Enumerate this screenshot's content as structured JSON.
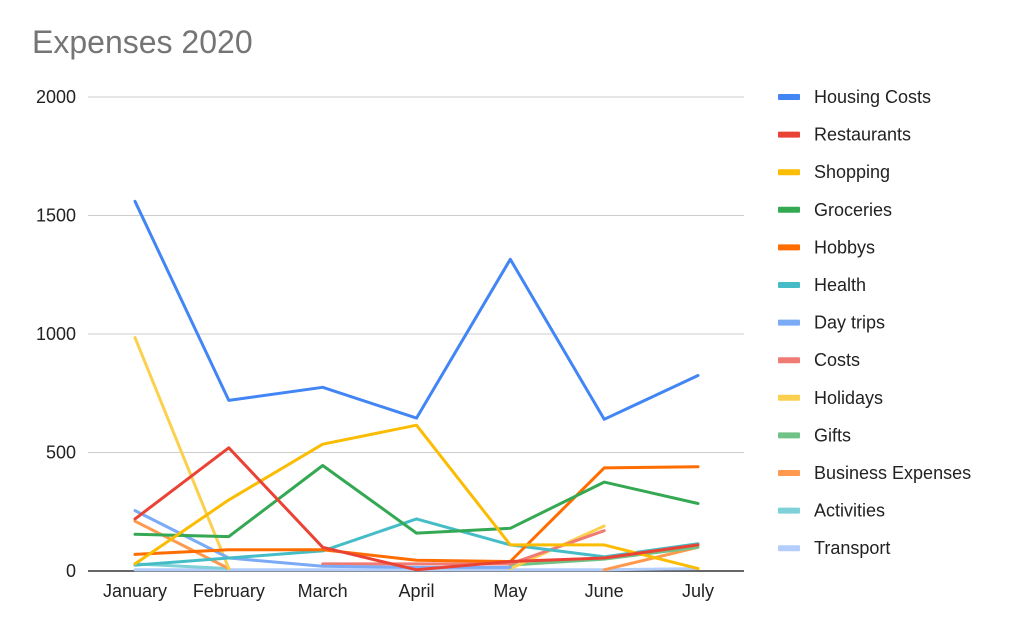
{
  "chart_data": {
    "type": "line",
    "title": "Expenses 2020",
    "xlabel": "",
    "ylabel": "",
    "ylim": [
      0,
      2000
    ],
    "yticks": [
      "0",
      "500",
      "1000",
      "1500",
      "2000"
    ],
    "ytick_values": [
      0,
      500,
      1000,
      1500,
      2000
    ],
    "grid": true,
    "legend_position": "right",
    "categories": [
      "January",
      "February",
      "March",
      "April",
      "May",
      "June",
      "July"
    ],
    "series": [
      {
        "name": "Housing Costs",
        "color": "#4285f4",
        "values": [
          1560,
          720,
          775,
          645,
          1315,
          640,
          825
        ]
      },
      {
        "name": "Restaurants",
        "color": "#ea4335",
        "values": [
          220,
          520,
          100,
          5,
          40,
          55,
          110
        ]
      },
      {
        "name": "Shopping",
        "color": "#fbbc04",
        "values": [
          30,
          300,
          535,
          615,
          110,
          110,
          10
        ]
      },
      {
        "name": "Groceries",
        "color": "#34a853",
        "values": [
          155,
          145,
          445,
          160,
          180,
          375,
          285
        ]
      },
      {
        "name": "Hobbys",
        "color": "#ff6d01",
        "values": [
          70,
          90,
          90,
          45,
          40,
          435,
          440
        ]
      },
      {
        "name": "Health",
        "color": "#46bdc6",
        "values": [
          25,
          55,
          85,
          220,
          110,
          60,
          115
        ]
      },
      {
        "name": "Day trips",
        "color": "#7baaf7",
        "values": [
          255,
          55,
          20,
          15,
          15,
          null,
          40
        ]
      },
      {
        "name": "Costs",
        "color": "#f07b72",
        "values": [
          null,
          null,
          30,
          30,
          30,
          170,
          null
        ]
      },
      {
        "name": "Holidays",
        "color": "#fcd04f",
        "values": [
          985,
          10,
          null,
          null,
          10,
          190,
          null
        ]
      },
      {
        "name": "Gifts",
        "color": "#71c287",
        "values": [
          null,
          null,
          null,
          null,
          25,
          50,
          100
        ]
      },
      {
        "name": "Business Expenses",
        "color": "#ff994d",
        "values": [
          210,
          10,
          null,
          null,
          null,
          5,
          100
        ]
      },
      {
        "name": "Activities",
        "color": "#7ed1d7",
        "values": [
          30,
          10,
          null,
          null,
          null,
          null,
          115
        ]
      },
      {
        "name": "Transport",
        "color": "#b3cefb",
        "values": [
          5,
          5,
          5,
          5,
          5,
          5,
          10
        ]
      }
    ]
  }
}
